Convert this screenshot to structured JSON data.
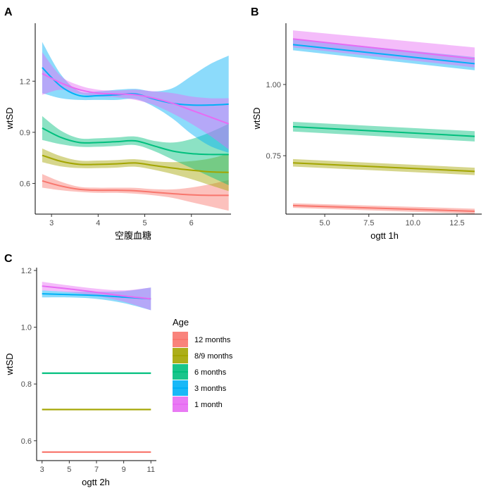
{
  "chart_data": [
    {
      "panel": "A",
      "type": "line",
      "xlabel": "空腹血糖",
      "ylabel": "wtSD",
      "xlim": [
        2.65,
        6.85
      ],
      "ylim": [
        0.42,
        1.54
      ],
      "x_ticks": [
        3,
        4,
        5,
        6
      ],
      "y_ticks": [
        0.6,
        0.9,
        1.2
      ],
      "y_tick_labels": [
        "0.6",
        "0.9",
        "1.2"
      ],
      "series": [
        {
          "name": "12 months",
          "x": [
            2.8,
            3.2,
            3.6,
            4.0,
            4.4,
            4.8,
            5.2,
            5.6,
            6.0,
            6.4,
            6.8
          ],
          "y": [
            0.615,
            0.585,
            0.565,
            0.56,
            0.56,
            0.557,
            0.548,
            0.54,
            0.533,
            0.53,
            0.53
          ],
          "lo": [
            0.575,
            0.56,
            0.55,
            0.545,
            0.545,
            0.54,
            0.53,
            0.515,
            0.49,
            0.465,
            0.44
          ],
          "hi": [
            0.655,
            0.61,
            0.58,
            0.575,
            0.575,
            0.574,
            0.566,
            0.565,
            0.576,
            0.595,
            0.62
          ]
        },
        {
          "name": "8/9 months",
          "x": [
            2.8,
            3.2,
            3.6,
            4.0,
            4.4,
            4.8,
            5.2,
            5.6,
            6.0,
            6.4,
            6.8
          ],
          "y": [
            0.765,
            0.73,
            0.712,
            0.712,
            0.715,
            0.72,
            0.705,
            0.69,
            0.678,
            0.668,
            0.665
          ],
          "lo": [
            0.725,
            0.7,
            0.69,
            0.69,
            0.693,
            0.698,
            0.68,
            0.655,
            0.625,
            0.59,
            0.555
          ],
          "hi": [
            0.805,
            0.76,
            0.734,
            0.734,
            0.737,
            0.742,
            0.73,
            0.725,
            0.731,
            0.746,
            0.775
          ]
        },
        {
          "name": "6 months",
          "x": [
            2.8,
            3.2,
            3.6,
            4.0,
            4.4,
            4.8,
            5.2,
            5.6,
            6.0,
            6.4,
            6.8
          ],
          "y": [
            0.925,
            0.87,
            0.84,
            0.84,
            0.845,
            0.85,
            0.82,
            0.79,
            0.775,
            0.77,
            0.77
          ],
          "lo": [
            0.855,
            0.83,
            0.815,
            0.815,
            0.82,
            0.825,
            0.79,
            0.74,
            0.69,
            0.64,
            0.59
          ],
          "hi": [
            0.995,
            0.91,
            0.865,
            0.865,
            0.87,
            0.875,
            0.85,
            0.84,
            0.86,
            0.9,
            0.95
          ]
        },
        {
          "name": "3 months",
          "x": [
            2.8,
            3.2,
            3.6,
            4.0,
            4.4,
            4.8,
            5.2,
            5.6,
            6.0,
            6.4,
            6.8
          ],
          "y": [
            1.28,
            1.17,
            1.115,
            1.115,
            1.12,
            1.125,
            1.095,
            1.07,
            1.06,
            1.06,
            1.065
          ],
          "lo": [
            1.13,
            1.1,
            1.09,
            1.09,
            1.09,
            1.095,
            1.05,
            0.98,
            0.89,
            0.82,
            0.78
          ],
          "hi": [
            1.43,
            1.24,
            1.14,
            1.14,
            1.15,
            1.155,
            1.14,
            1.16,
            1.23,
            1.3,
            1.35
          ]
        },
        {
          "name": "1 month",
          "x": [
            2.8,
            3.2,
            3.6,
            4.0,
            4.4,
            4.8,
            5.2,
            5.6,
            6.0,
            6.4,
            6.8
          ],
          "y": [
            1.245,
            1.19,
            1.15,
            1.13,
            1.125,
            1.12,
            1.1,
            1.07,
            1.03,
            0.99,
            0.95
          ],
          "lo": [
            1.12,
            1.15,
            1.125,
            1.11,
            1.105,
            1.09,
            1.06,
            1.01,
            0.95,
            0.88,
            0.8
          ],
          "hi": [
            1.37,
            1.23,
            1.175,
            1.15,
            1.145,
            1.15,
            1.14,
            1.13,
            1.11,
            1.1,
            1.1
          ]
        }
      ]
    },
    {
      "panel": "B",
      "type": "line",
      "xlabel": "ogtt 1h",
      "ylabel": "wtSD",
      "xlim": [
        2.8,
        13.9
      ],
      "ylim": [
        0.545,
        1.215
      ],
      "x_ticks": [
        5,
        7.5,
        10,
        12.5
      ],
      "x_tick_labels": [
        "5.0",
        "7.5",
        "10.0",
        "12.5"
      ],
      "y_ticks": [
        0.75,
        1.0
      ],
      "y_tick_labels": [
        "0.75",
        "1.00"
      ],
      "series": [
        {
          "name": "12 months",
          "x": [
            3.2,
            13.5
          ],
          "y": [
            0.575,
            0.555
          ],
          "lo": [
            0.567,
            0.546
          ],
          "hi": [
            0.583,
            0.564
          ]
        },
        {
          "name": "8/9 months",
          "x": [
            3.2,
            13.5
          ],
          "y": [
            0.725,
            0.695
          ],
          "lo": [
            0.712,
            0.682
          ],
          "hi": [
            0.738,
            0.708
          ]
        },
        {
          "name": "6 months",
          "x": [
            3.2,
            13.5
          ],
          "y": [
            0.852,
            0.818
          ],
          "lo": [
            0.835,
            0.8
          ],
          "hi": [
            0.869,
            0.836
          ]
        },
        {
          "name": "3 months",
          "x": [
            3.2,
            13.5
          ],
          "y": [
            1.14,
            1.073
          ],
          "lo": [
            1.12,
            1.05
          ],
          "hi": [
            1.16,
            1.096
          ]
        },
        {
          "name": "1 month",
          "x": [
            3.2,
            13.5
          ],
          "y": [
            1.16,
            1.09
          ],
          "lo": [
            1.13,
            1.06
          ],
          "hi": [
            1.19,
            1.13
          ]
        }
      ]
    },
    {
      "panel": "C",
      "type": "line",
      "xlabel": "ogtt 2h",
      "ylabel": "wtSD",
      "xlim": [
        2.6,
        11.4
      ],
      "ylim": [
        0.53,
        1.21
      ],
      "x_ticks": [
        3,
        5,
        7,
        9,
        11
      ],
      "y_ticks": [
        0.6,
        0.8,
        1.0,
        1.2
      ],
      "y_tick_labels": [
        "0.6",
        "0.8",
        "1.0",
        "1.2"
      ],
      "series": [
        {
          "name": "12 months",
          "x": [
            3.0,
            11.0
          ],
          "y": [
            0.56,
            0.56
          ],
          "lo": [
            0.557,
            0.557
          ],
          "hi": [
            0.563,
            0.563
          ]
        },
        {
          "name": "8/9 months",
          "x": [
            3.0,
            11.0
          ],
          "y": [
            0.71,
            0.71
          ],
          "lo": [
            0.707,
            0.707
          ],
          "hi": [
            0.713,
            0.713
          ]
        },
        {
          "name": "6 months",
          "x": [
            3.0,
            11.0
          ],
          "y": [
            0.838,
            0.838
          ],
          "lo": [
            0.835,
            0.835
          ],
          "hi": [
            0.841,
            0.841
          ]
        },
        {
          "name": "3 months",
          "x": [
            3.0,
            5.0,
            7.0,
            9.0,
            11.0
          ],
          "y": [
            1.118,
            1.115,
            1.112,
            1.106,
            1.1
          ],
          "lo": [
            1.105,
            1.105,
            1.1,
            1.085,
            1.06
          ],
          "hi": [
            1.13,
            1.125,
            1.125,
            1.127,
            1.14
          ]
        },
        {
          "name": "1 month",
          "x": [
            3.0,
            5.0,
            7.0,
            9.0,
            11.0
          ],
          "y": [
            1.145,
            1.135,
            1.123,
            1.11,
            1.1
          ],
          "lo": [
            1.13,
            1.123,
            1.11,
            1.09,
            1.06
          ],
          "hi": [
            1.16,
            1.147,
            1.136,
            1.13,
            1.14
          ]
        }
      ]
    }
  ],
  "legend": {
    "title": "Age",
    "items": [
      {
        "label": "12 months",
        "color": "#F8766D"
      },
      {
        "label": "8/9 months",
        "color": "#A3A500"
      },
      {
        "label": "6 months",
        "color": "#00BF7D"
      },
      {
        "label": "3 months",
        "color": "#00B0F6"
      },
      {
        "label": "1 month",
        "color": "#E76BF3"
      }
    ]
  },
  "series_colors": {
    "12 months": "#F8766D",
    "8/9 months": "#A3A500",
    "6 months": "#00BF7D",
    "3 months": "#00B0F6",
    "1 month": "#E76BF3"
  },
  "panel_labels": [
    "A",
    "B",
    "C"
  ]
}
